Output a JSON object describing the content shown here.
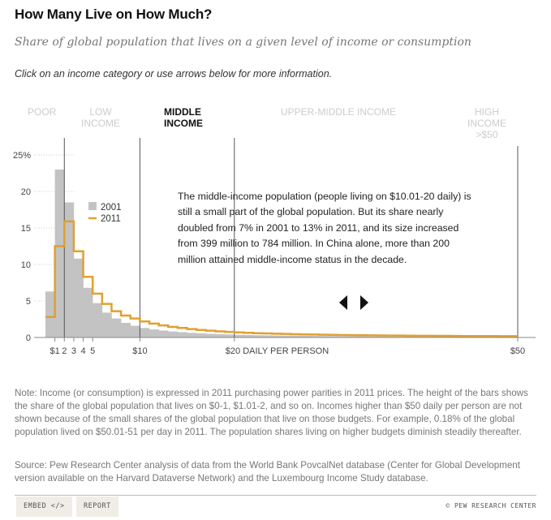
{
  "header": {
    "title": "How Many Live on How Much?",
    "subtitle": "Share of global population that lives on a given level of income or consumption",
    "instruction": "Click on an income category or use arrows below for more information."
  },
  "categories": [
    {
      "label_lines": [
        "POOR"
      ],
      "active": false
    },
    {
      "label_lines": [
        "LOW",
        "INCOME"
      ],
      "active": false
    },
    {
      "label_lines": [
        "MIDDLE",
        "INCOME"
      ],
      "active": true
    },
    {
      "label_lines": [
        "UPPER-MIDDLE INCOME"
      ],
      "active": false
    },
    {
      "label_lines": [
        "HIGH",
        "INCOME",
        ">$50"
      ],
      "active": false
    }
  ],
  "annotation": "The middle-income population (people living on $10.01-20 daily) is still a small part of the global population. But its share nearly doubled from 7% in 2001 to 13% in 2011, and its size increased from 399 million to 784 million. In China alone, more than 200 million attained middle-income status in the decade.",
  "nav": {
    "prev": "previous-category",
    "next": "next-category"
  },
  "chart_data": {
    "type": "bar",
    "title": "How Many Live on How Much?",
    "xlabel": "DAILY PER PERSON",
    "ylabel": "",
    "x_unit": "$ per day",
    "xlim": [
      0,
      50
    ],
    "ylim": [
      0,
      25
    ],
    "yticks": [
      0,
      5,
      10,
      15,
      20,
      25
    ],
    "ytick_labels": [
      "0",
      "5",
      "10",
      "15",
      "20",
      "25%"
    ],
    "xticks": [
      1,
      2,
      3,
      4,
      5,
      10,
      20,
      50
    ],
    "xtick_labels": [
      "$1",
      "2",
      "3",
      "4",
      "5",
      "$10",
      "$20 DAILY PER PERSON",
      "$50"
    ],
    "category_boundaries": [
      2,
      10,
      20,
      50
    ],
    "grid": "dotted horizontal (left region)",
    "legend": {
      "position": "top-left inside plot",
      "entries": [
        "2001",
        "2011"
      ]
    },
    "bin_width": 1,
    "series": [
      {
        "name": "2001",
        "style": "bars",
        "color": "#c3c3c3",
        "values": [
          6.3,
          23.0,
          18.5,
          10.8,
          6.8,
          4.7,
          3.4,
          2.6,
          2.0,
          1.6,
          1.3,
          1.1,
          0.95,
          0.82,
          0.72,
          0.63,
          0.56,
          0.5,
          0.45,
          0.41,
          0.37,
          0.34,
          0.31,
          0.29,
          0.27,
          0.25,
          0.23,
          0.22,
          0.21,
          0.2,
          0.19,
          0.18,
          0.17,
          0.16,
          0.15,
          0.15,
          0.14,
          0.14,
          0.13,
          0.13,
          0.12,
          0.12,
          0.12,
          0.11,
          0.11,
          0.11,
          0.1,
          0.1,
          0.1,
          0.1
        ]
      },
      {
        "name": "2011",
        "style": "step-line",
        "color": "#e0a030",
        "values": [
          2.8,
          12.5,
          15.9,
          11.8,
          8.3,
          6.0,
          4.6,
          3.6,
          3.0,
          2.6,
          2.2,
          1.9,
          1.65,
          1.45,
          1.3,
          1.15,
          1.03,
          0.93,
          0.84,
          0.77,
          0.7,
          0.64,
          0.59,
          0.55,
          0.51,
          0.48,
          0.45,
          0.42,
          0.4,
          0.38,
          0.36,
          0.34,
          0.32,
          0.31,
          0.29,
          0.28,
          0.27,
          0.26,
          0.25,
          0.24,
          0.23,
          0.22,
          0.22,
          0.21,
          0.2,
          0.2,
          0.19,
          0.19,
          0.18,
          0.18
        ]
      }
    ]
  },
  "note": "Note: Income (or consumption) is expressed in 2011 purchasing power parities in 2011 prices. The height of the bars shows the share of the global population that lives on $0-1, $1.01-2, and so on. Incomes higher than $50 daily per person are not shown because of the small shares of the global population that live on those budgets. For example, 0.18% of the global population lived on $50.01-51 per day in 2011. The population shares living on higher budgets diminish steadily thereafter.",
  "source": "Source: Pew Research Center analysis of data from the World Bank PovcalNet database (Center for Global Development version available on the Harvard Dataverse Network) and the Luxembourg Income Study database.",
  "footer": {
    "embed": "EMBED </>",
    "report": "REPORT",
    "credit": "© PEW RESEARCH CENTER"
  }
}
